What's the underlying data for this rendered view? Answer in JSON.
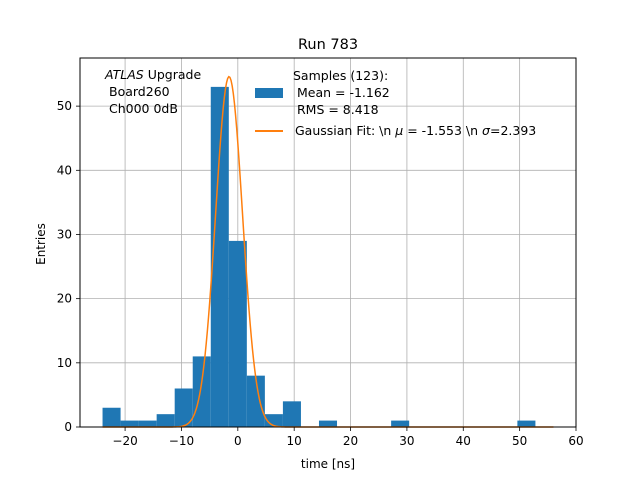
{
  "chart_data": {
    "type": "bar",
    "title": "Run 783",
    "xlabel": "time [ns]",
    "ylabel": "Entries",
    "xlim": [
      -28,
      60
    ],
    "ylim": [
      0,
      57.5
    ],
    "x_ticks": [
      -20,
      -10,
      0,
      10,
      20,
      30,
      40,
      50,
      60
    ],
    "y_ticks": [
      0,
      10,
      20,
      30,
      40,
      50
    ],
    "grid": true,
    "annotation": {
      "italic": "ATLAS",
      "line1_rest": " Upgrade",
      "line2": "Board260",
      "line3": "Ch000 0dB"
    },
    "legend_position": "top-right",
    "histogram": {
      "name": "Samples (123):\n Mean = -1.162\n RMS = 8.418",
      "legend_lines": [
        "Samples (123):",
        " Mean = -1.162",
        " RMS = 8.418"
      ],
      "color": "#1f77b4",
      "bins": [
        {
          "x0": -24.0,
          "x1": -20.8,
          "count": 3
        },
        {
          "x0": -20.8,
          "x1": -17.6,
          "count": 1
        },
        {
          "x0": -17.6,
          "x1": -14.4,
          "count": 1
        },
        {
          "x0": -14.4,
          "x1": -11.2,
          "count": 2
        },
        {
          "x0": -11.2,
          "x1": -8.0,
          "count": 6
        },
        {
          "x0": -8.0,
          "x1": -4.8,
          "count": 11
        },
        {
          "x0": -4.8,
          "x1": -1.6,
          "count": 53
        },
        {
          "x0": -1.6,
          "x1": 1.6,
          "count": 29
        },
        {
          "x0": 1.6,
          "x1": 4.8,
          "count": 8
        },
        {
          "x0": 4.8,
          "x1": 8.0,
          "count": 2
        },
        {
          "x0": 8.0,
          "x1": 11.2,
          "count": 4
        },
        {
          "x0": 11.2,
          "x1": 14.4,
          "count": 0
        },
        {
          "x0": 14.4,
          "x1": 17.6,
          "count": 1
        },
        {
          "x0": 17.6,
          "x1": 20.8,
          "count": 0
        },
        {
          "x0": 20.8,
          "x1": 24.0,
          "count": 0
        },
        {
          "x0": 24.0,
          "x1": 27.2,
          "count": 0
        },
        {
          "x0": 27.2,
          "x1": 30.4,
          "count": 1
        },
        {
          "x0": 30.4,
          "x1": 33.6,
          "count": 0
        },
        {
          "x0": 33.6,
          "x1": 36.8,
          "count": 0
        },
        {
          "x0": 36.8,
          "x1": 40.0,
          "count": 0
        },
        {
          "x0": 40.0,
          "x1": 43.2,
          "count": 0
        },
        {
          "x0": 43.2,
          "x1": 46.4,
          "count": 0
        },
        {
          "x0": 46.4,
          "x1": 49.6,
          "count": 0
        },
        {
          "x0": 49.6,
          "x1": 52.8,
          "count": 1
        }
      ]
    },
    "fit": {
      "legend_prefix": "Gaussian Fit: \\n ",
      "mu_symbol": "μ",
      "legend_mid": " = -1.553 \\n ",
      "sigma_symbol": "σ",
      "legend_suffix": "=2.393",
      "color": "#ff7f0e",
      "amplitude": 54.6,
      "mu": -1.553,
      "sigma": 2.393,
      "x_range": [
        -24,
        56
      ]
    }
  }
}
